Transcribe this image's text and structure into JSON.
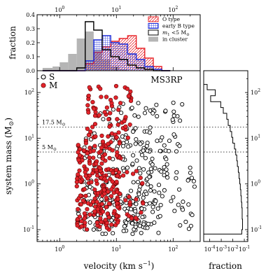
{
  "chart_data": [
    {
      "type": "bar",
      "panel": "top velocity histogram",
      "xscale": "log",
      "xlim": [
        0.4,
        300
      ],
      "ylim": [
        0,
        0.4
      ],
      "ylabel": "fraction",
      "x_ticks": [
        {
          "v": 1,
          "label": "10",
          "exp": "0"
        },
        {
          "v": 10,
          "label": "10",
          "exp": "1"
        },
        {
          "v": 100,
          "label": "10",
          "exp": "2"
        }
      ],
      "y_ticks": [
        {
          "v": 0.0,
          "label": "0.0"
        },
        {
          "v": 0.1,
          "label": "0.1"
        },
        {
          "v": 0.2,
          "label": "0.2"
        },
        {
          "v": 0.3,
          "label": "0.3"
        },
        {
          "v": 0.4,
          "label": "0.4"
        }
      ],
      "bin_edges": [
        0.5,
        0.75,
        1.0,
        1.41,
        2.0,
        2.82,
        3.98,
        5.62,
        7.94,
        11.2,
        15.8,
        22.4,
        31.6,
        44.7,
        63.1,
        89.1
      ],
      "series": [
        {
          "name": "in cluster",
          "style": "gray-fill",
          "values": [
            0.02,
            0.03,
            0.06,
            0.12,
            0.23,
            0.28,
            0.15,
            0.08,
            0.03,
            0.01,
            0.0,
            0.0,
            0.0,
            0.0,
            0.0
          ]
        },
        {
          "name": "O type",
          "style": "red-hatch",
          "values": [
            0,
            0,
            0,
            0,
            0,
            0.05,
            0.13,
            0.17,
            0.21,
            0.23,
            0.25,
            0.16,
            0.09,
            0.03,
            0.0
          ]
        },
        {
          "name": "early B type",
          "style": "blue-cross",
          "values": [
            0,
            0,
            0,
            0,
            0,
            0.07,
            0.22,
            0.25,
            0.2,
            0.19,
            0.12,
            0.08,
            0.03,
            0.01,
            0.0
          ]
        },
        {
          "name": "m1 < 5 Msun",
          "style": "black-step",
          "values": [
            0,
            0,
            0,
            0,
            0.02,
            0.35,
            0.29,
            0.15,
            0.1,
            0.08,
            0.04,
            0.02,
            0.01,
            0.0,
            0.0
          ]
        }
      ],
      "legend": [
        {
          "key": "O type",
          "label": "O type"
        },
        {
          "key": "early B type",
          "label": "early B type"
        },
        {
          "key": "m1",
          "label": "m",
          "sub": "1",
          "rest": " <5 M",
          "sun": "⊙"
        },
        {
          "key": "in cluster",
          "label": "in cluster"
        }
      ],
      "legend_position": "top-right"
    },
    {
      "type": "scatter",
      "panel": "main velocity vs system mass",
      "title": "MS3RP",
      "xscale": "log",
      "yscale": "log",
      "xlim": [
        0.4,
        300
      ],
      "ylim": [
        0.055,
        300
      ],
      "xlabel": "velocity (km s",
      "xlabel_sup": "−1",
      "xlabel_end": ")",
      "ylabel": "system mass (M",
      "ylabel_sun": "⊙",
      "ylabel_end": ")",
      "x_ticks": [
        {
          "v": 1,
          "label": "10",
          "exp": "0"
        },
        {
          "v": 10,
          "label": "10",
          "exp": "1"
        },
        {
          "v": 100,
          "label": "10",
          "exp": "2"
        }
      ],
      "y_ticks": [
        {
          "v": 0.1,
          "label": "10",
          "exp": "-1"
        },
        {
          "v": 1,
          "label": "10",
          "exp": "0"
        },
        {
          "v": 10,
          "label": "10",
          "exp": "1"
        },
        {
          "v": 100,
          "label": "10",
          "exp": "2"
        }
      ],
      "reference_lines": [
        {
          "y": 17.5,
          "label": "17.5 M",
          "sun": "⊙"
        },
        {
          "y": 5,
          "label": "5 M",
          "sun": "⊙"
        }
      ],
      "series": [
        {
          "name": "S",
          "style": "open-circle",
          "clusters": [
            {
              "x_range": [
                2,
                60
              ],
              "y_range": [
                0.08,
                0.5
              ],
              "n": 130
            },
            {
              "x_range": [
                2.5,
                80
              ],
              "y_range": [
                0.5,
                10
              ],
              "n": 110
            },
            {
              "x_range": [
                4,
                150
              ],
              "y_range": [
                5,
                60
              ],
              "n": 70
            },
            {
              "x_range": [
                20,
                250
              ],
              "y_range": [
                0.1,
                3
              ],
              "n": 40
            }
          ]
        },
        {
          "name": "M",
          "style": "red-filled",
          "clusters": [
            {
              "x_range": [
                2,
                12
              ],
              "y_range": [
                0.1,
                10
              ],
              "n": 220
            },
            {
              "x_range": [
                3,
                20
              ],
              "y_range": [
                10,
                150
              ],
              "n": 70
            },
            {
              "x_range": [
                5,
                30
              ],
              "y_range": [
                0.15,
                2
              ],
              "n": 40
            }
          ]
        }
      ],
      "legend": [
        {
          "key": "S",
          "label": "S"
        },
        {
          "key": "M",
          "label": "M"
        }
      ],
      "legend_position": "top-left"
    },
    {
      "type": "line",
      "panel": "right mass-fraction histogram",
      "xscale": "log",
      "yscale": "log",
      "xlim": [
        3e-05,
        0.2
      ],
      "ylim": [
        0.055,
        300
      ],
      "xlabel": "fraction",
      "x_ticks": [
        {
          "v": 0.0001,
          "label": "10",
          "exp": "-4"
        },
        {
          "v": 0.001,
          "label": "10",
          "exp": "-3"
        },
        {
          "v": 0.01,
          "label": "10",
          "exp": "-2"
        },
        {
          "v": 0.1,
          "label": "10",
          "exp": "-1"
        }
      ],
      "y_ticks": [
        {
          "v": 0.1,
          "label": "10",
          "exp": "-1"
        },
        {
          "v": 1,
          "label": "10",
          "exp": "0"
        },
        {
          "v": 10,
          "label": "10",
          "exp": "1"
        },
        {
          "v": 100,
          "label": "10",
          "exp": "2"
        }
      ],
      "y_edges": [
        0.08,
        0.1,
        0.13,
        0.17,
        0.22,
        0.3,
        0.4,
        0.55,
        0.75,
        1.0,
        1.3,
        1.8,
        2.4,
        3.2,
        4.3,
        5.8,
        7.8,
        10.5,
        14,
        19,
        26,
        35,
        47,
        63,
        85,
        115,
        150
      ],
      "fractions": [
        0.06,
        0.07,
        0.07,
        0.065,
        0.065,
        0.06,
        0.055,
        0.05,
        0.045,
        0.04,
        0.035,
        0.03,
        0.025,
        0.022,
        0.018,
        0.014,
        0.01,
        0.008,
        0.006,
        0.004,
        0.003,
        0.0015,
        0.0009,
        0.00012,
        0.0003,
        6e-05
      ]
    }
  ]
}
